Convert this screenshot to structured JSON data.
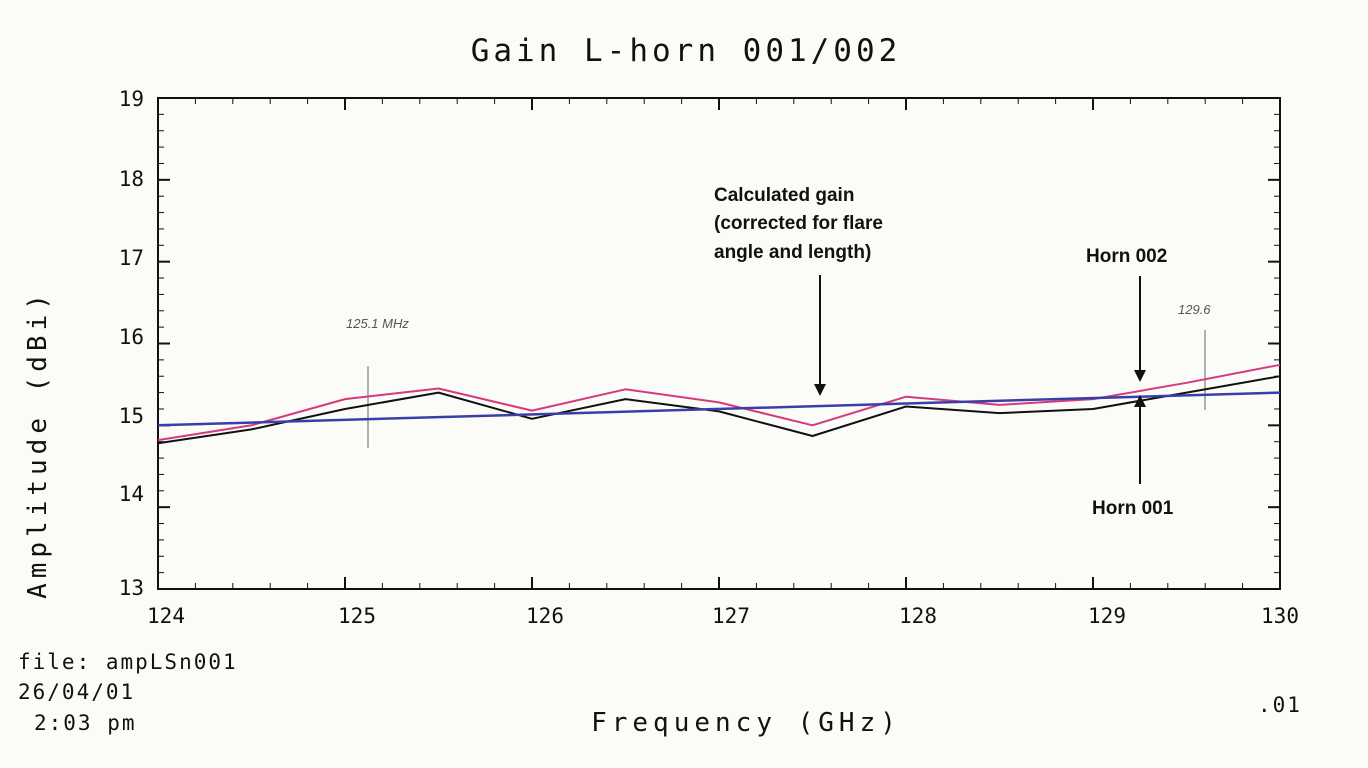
{
  "chart_data": {
    "type": "line",
    "title": "Gain L-horn 001/002",
    "xlabel": "Frequency (GHz)",
    "ylabel": "Amplitude (dBi)",
    "xlim": [
      124,
      130
    ],
    "ylim": [
      13,
      19
    ],
    "xticks": [
      "124",
      "125",
      "126",
      "127",
      "128",
      "129",
      "130"
    ],
    "yticks": [
      "13",
      "14",
      "15",
      "16",
      "17",
      "18",
      "19"
    ],
    "grid": false,
    "series": [
      {
        "name": "Horn 001",
        "color": "#111111",
        "x": [
          124,
          124.5,
          125,
          125.5,
          126,
          126.5,
          127,
          127.5,
          128,
          128.5,
          129,
          129.5,
          130
        ],
        "values": [
          14.78,
          14.95,
          15.2,
          15.4,
          15.08,
          15.32,
          15.17,
          14.87,
          15.23,
          15.15,
          15.2,
          15.4,
          15.6
        ]
      },
      {
        "name": "Horn 002",
        "color": "#d63a7e",
        "x": [
          124,
          124.5,
          125,
          125.5,
          126,
          126.5,
          127,
          127.5,
          128,
          128.5,
          129,
          129.5,
          130
        ],
        "values": [
          14.82,
          15.0,
          15.32,
          15.45,
          15.18,
          15.44,
          15.28,
          15.0,
          15.35,
          15.25,
          15.32,
          15.52,
          15.74
        ]
      },
      {
        "name": "Calculated gain",
        "color": "#3a3fa8",
        "x": [
          124,
          130
        ],
        "values": [
          15.0,
          15.4
        ]
      }
    ],
    "annotations": {
      "calculated_gain": "Calculated gain",
      "calculated_gain_note_1": "(corrected for flare",
      "calculated_gain_note_2": "angle and length)",
      "horn_002": "Horn 002",
      "horn_001": "Horn 001"
    }
  },
  "handwritten": {
    "left_marker": "125.1 MHz",
    "right_marker": "129.6"
  },
  "footer": {
    "file": "file: ampLSn001",
    "date": "26/04/01",
    "time": "2:03 pm",
    "scale_note": ".01"
  }
}
